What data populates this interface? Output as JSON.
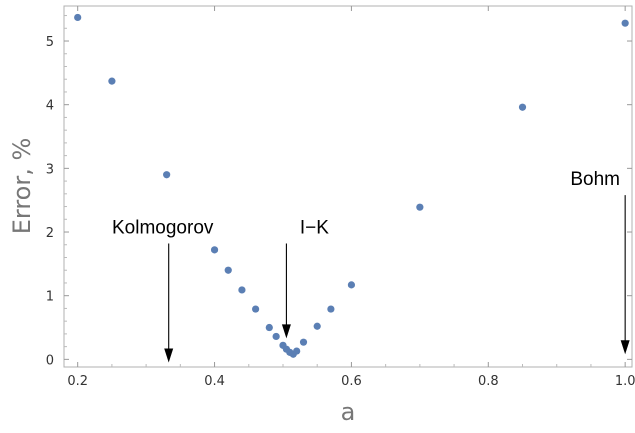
{
  "chart_data": {
    "type": "scatter",
    "title": "",
    "xlabel": "a",
    "ylabel": "Error, %",
    "xlim": [
      0.18,
      1.01
    ],
    "ylim": [
      -0.12,
      5.55
    ],
    "xticks": [
      0.2,
      0.4,
      0.6,
      0.8,
      1.0
    ],
    "xtick_labels": [
      "0.2",
      "0.4",
      "0.6",
      "0.8",
      "1.0"
    ],
    "yticks": [
      0,
      1,
      2,
      3,
      4,
      5
    ],
    "ytick_labels": [
      "0",
      "1",
      "2",
      "3",
      "4",
      "5"
    ],
    "grid": false,
    "legend": "none",
    "point_color": "#5b7fb4",
    "points": [
      {
        "x": 0.2,
        "y": 5.37
      },
      {
        "x": 0.25,
        "y": 4.37
      },
      {
        "x": 0.33,
        "y": 2.9
      },
      {
        "x": 0.4,
        "y": 1.72
      },
      {
        "x": 0.42,
        "y": 1.4
      },
      {
        "x": 0.44,
        "y": 1.09
      },
      {
        "x": 0.46,
        "y": 0.79
      },
      {
        "x": 0.48,
        "y": 0.5
      },
      {
        "x": 0.49,
        "y": 0.36
      },
      {
        "x": 0.5,
        "y": 0.22
      },
      {
        "x": 0.505,
        "y": 0.16
      },
      {
        "x": 0.51,
        "y": 0.11
      },
      {
        "x": 0.515,
        "y": 0.08
      },
      {
        "x": 0.52,
        "y": 0.13
      },
      {
        "x": 0.53,
        "y": 0.27
      },
      {
        "x": 0.55,
        "y": 0.52
      },
      {
        "x": 0.57,
        "y": 0.79
      },
      {
        "x": 0.6,
        "y": 1.17
      },
      {
        "x": 0.7,
        "y": 2.39
      },
      {
        "x": 0.85,
        "y": 3.96
      },
      {
        "x": 1.0,
        "y": 5.28
      }
    ],
    "annotations": [
      {
        "label": "Kolmogorov",
        "arrow_x": 0.333,
        "arrow_from_y": 1.82,
        "arrow_to_y": -0.05
      },
      {
        "label": "I−K",
        "arrow_x": 0.505,
        "arrow_from_y": 1.82,
        "arrow_to_y": 0.33
      },
      {
        "label": "Bohm",
        "arrow_x": 1.0,
        "arrow_from_y": 2.58,
        "arrow_to_y": 0.08
      }
    ]
  }
}
